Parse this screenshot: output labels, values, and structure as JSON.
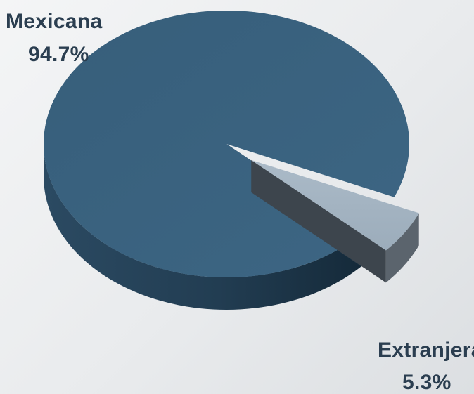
{
  "chart_data": {
    "type": "pie",
    "title": "",
    "slices": [
      {
        "label": "Mexicana",
        "value": 94.7,
        "value_label": "94.7%",
        "color": "#3a627f"
      },
      {
        "label": "Extranjera",
        "value": 5.3,
        "value_label": "5.3%",
        "color": "#a3b3c1"
      }
    ],
    "legend": "none",
    "style": "3d-exploded"
  }
}
